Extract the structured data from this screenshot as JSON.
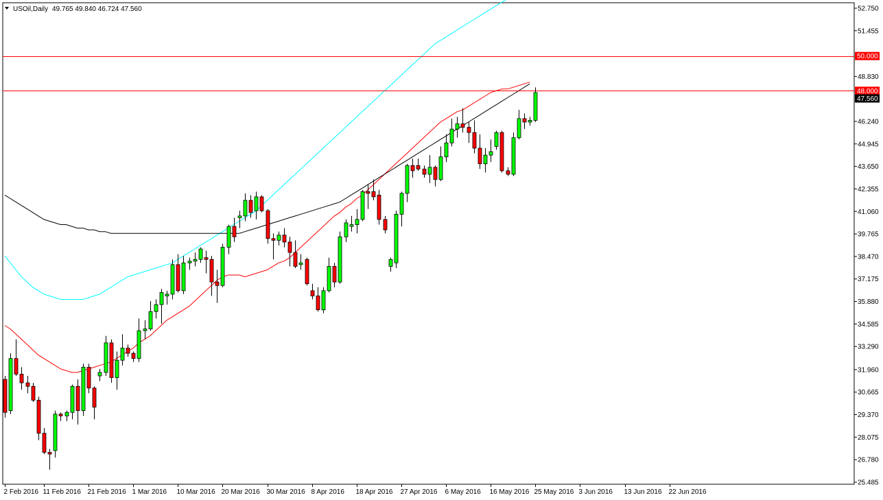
{
  "header": {
    "symbol_label": "USOil,Daily",
    "ohlc_label": "49.765 49.840 46.724 47.560",
    "dropdown_icon": "triangle-down-icon"
  },
  "colors": {
    "bull": "#00ff00",
    "bear": "#ff0000",
    "wick": "#000000",
    "level_line": "#ff0000",
    "ma_fast": "#ff0000",
    "ma_mid": "#00ffff",
    "ma_slow": "#000000",
    "current_price_tag": "#000000",
    "level_tag": "#ff0000",
    "grid": "none"
  },
  "chart_data": {
    "type": "candlestick",
    "title": "USOil,Daily",
    "ylim": [
      25.485,
      52.75
    ],
    "grid": false,
    "y_ticks": [
      "52.750",
      "51.455",
      "50.000",
      "48.830",
      "48.000",
      "47.560",
      "46.240",
      "44.945",
      "43.650",
      "42.355",
      "41.060",
      "39.765",
      "38.470",
      "37.175",
      "35.880",
      "34.585",
      "33.290",
      "31.960",
      "30.665",
      "29.370",
      "28.075",
      "26.780",
      "25.485"
    ],
    "x_ticks": [
      {
        "label": "2 Feb 2016",
        "index": 0
      },
      {
        "label": "11 Feb 2016",
        "index": 7
      },
      {
        "label": "21 Feb 2016",
        "index": 15
      },
      {
        "label": "1 Mar 2016",
        "index": 23
      },
      {
        "label": "10 Mar 2016",
        "index": 31
      },
      {
        "label": "20 Mar 2016",
        "index": 39
      },
      {
        "label": "30 Mar 2016",
        "index": 47
      },
      {
        "label": "8 Apr 2016",
        "index": 55
      },
      {
        "label": "18 Apr 2016",
        "index": 63
      },
      {
        "label": "27 Apr 2016",
        "index": 71
      },
      {
        "label": "6 May 2016",
        "index": 79
      },
      {
        "label": "16 May 2016",
        "index": 87
      },
      {
        "label": "25 May 2016",
        "index": 95
      },
      {
        "label": "3 Jun 2016",
        "index": 103
      },
      {
        "label": "13 Jun 2016",
        "index": 111
      },
      {
        "label": "22 Jun 2016",
        "index": 119
      }
    ],
    "horizontal_levels": [
      {
        "value": 50.0,
        "label": "50.000"
      },
      {
        "value": 48.0,
        "label": "48.000"
      }
    ],
    "current_price": {
      "value": 47.56,
      "label": "47.560"
    },
    "candles": [
      {
        "o": 31.4,
        "h": 31.6,
        "l": 29.2,
        "c": 29.5
      },
      {
        "o": 29.6,
        "h": 32.9,
        "l": 29.4,
        "c": 32.6
      },
      {
        "o": 32.6,
        "h": 33.7,
        "l": 31.6,
        "c": 31.7
      },
      {
        "o": 31.7,
        "h": 32.1,
        "l": 30.8,
        "c": 31.2
      },
      {
        "o": 31.2,
        "h": 31.6,
        "l": 30.6,
        "c": 31.0
      },
      {
        "o": 31.0,
        "h": 31.2,
        "l": 30.1,
        "c": 30.2
      },
      {
        "o": 30.2,
        "h": 30.4,
        "l": 27.9,
        "c": 28.3
      },
      {
        "o": 28.3,
        "h": 28.6,
        "l": 27.1,
        "c": 27.2
      },
      {
        "o": 27.2,
        "h": 27.4,
        "l": 26.2,
        "c": 27.1
      },
      {
        "o": 27.3,
        "h": 29.6,
        "l": 26.9,
        "c": 29.4
      },
      {
        "o": 29.4,
        "h": 29.5,
        "l": 29.0,
        "c": 29.3
      },
      {
        "o": 29.3,
        "h": 29.6,
        "l": 29.0,
        "c": 29.5
      },
      {
        "o": 29.5,
        "h": 31.1,
        "l": 29.1,
        "c": 31.0
      },
      {
        "o": 31.0,
        "h": 31.4,
        "l": 28.8,
        "c": 29.6
      },
      {
        "o": 29.6,
        "h": 32.3,
        "l": 29.3,
        "c": 32.1
      },
      {
        "o": 32.1,
        "h": 32.3,
        "l": 30.6,
        "c": 30.9
      },
      {
        "o": 30.9,
        "h": 31.0,
        "l": 29.1,
        "c": 29.8
      },
      {
        "o": 31.6,
        "h": 32.0,
        "l": 31.3,
        "c": 31.8
      },
      {
        "o": 31.8,
        "h": 33.9,
        "l": 31.6,
        "c": 33.5
      },
      {
        "o": 33.5,
        "h": 33.7,
        "l": 31.2,
        "c": 31.5
      },
      {
        "o": 31.5,
        "h": 33.0,
        "l": 30.8,
        "c": 32.5
      },
      {
        "o": 32.5,
        "h": 34.0,
        "l": 32.2,
        "c": 33.2
      },
      {
        "o": 33.2,
        "h": 33.4,
        "l": 32.7,
        "c": 32.9
      },
      {
        "o": 32.9,
        "h": 33.0,
        "l": 32.4,
        "c": 32.6
      },
      {
        "o": 32.6,
        "h": 34.9,
        "l": 32.4,
        "c": 34.2
      },
      {
        "o": 34.2,
        "h": 34.8,
        "l": 33.7,
        "c": 34.3
      },
      {
        "o": 34.3,
        "h": 35.9,
        "l": 34.2,
        "c": 35.3
      },
      {
        "o": 35.3,
        "h": 36.0,
        "l": 34.9,
        "c": 35.7
      },
      {
        "o": 35.7,
        "h": 36.6,
        "l": 34.6,
        "c": 36.4
      },
      {
        "o": 36.2,
        "h": 36.5,
        "l": 35.7,
        "c": 36.3
      },
      {
        "o": 36.3,
        "h": 38.3,
        "l": 36.0,
        "c": 38.0
      },
      {
        "o": 38.0,
        "h": 38.6,
        "l": 36.4,
        "c": 36.5
      },
      {
        "o": 36.5,
        "h": 38.5,
        "l": 36.3,
        "c": 38.1
      },
      {
        "o": 38.1,
        "h": 38.4,
        "l": 37.7,
        "c": 38.2
      },
      {
        "o": 38.2,
        "h": 38.7,
        "l": 37.9,
        "c": 38.3
      },
      {
        "o": 38.3,
        "h": 39.0,
        "l": 38.1,
        "c": 38.9
      },
      {
        "o": 38.4,
        "h": 38.8,
        "l": 37.5,
        "c": 38.3
      },
      {
        "o": 38.3,
        "h": 38.5,
        "l": 36.2,
        "c": 37.0
      },
      {
        "o": 37.0,
        "h": 37.7,
        "l": 35.8,
        "c": 36.8
      },
      {
        "o": 36.8,
        "h": 39.2,
        "l": 36.7,
        "c": 39.0
      },
      {
        "o": 39.0,
        "h": 40.3,
        "l": 38.6,
        "c": 40.2
      },
      {
        "o": 40.2,
        "h": 40.7,
        "l": 39.3,
        "c": 39.6
      },
      {
        "o": 40.7,
        "h": 41.1,
        "l": 40.1,
        "c": 40.8
      },
      {
        "o": 40.8,
        "h": 42.1,
        "l": 40.5,
        "c": 41.7
      },
      {
        "o": 41.7,
        "h": 42.0,
        "l": 40.7,
        "c": 41.0
      },
      {
        "o": 41.1,
        "h": 42.2,
        "l": 40.6,
        "c": 41.9
      },
      {
        "o": 41.9,
        "h": 42.0,
        "l": 41.0,
        "c": 41.1
      },
      {
        "o": 41.1,
        "h": 41.2,
        "l": 39.2,
        "c": 39.5
      },
      {
        "o": 39.5,
        "h": 39.8,
        "l": 38.3,
        "c": 39.4
      },
      {
        "o": 39.4,
        "h": 39.9,
        "l": 39.1,
        "c": 39.7
      },
      {
        "o": 39.7,
        "h": 40.1,
        "l": 39.0,
        "c": 39.3
      },
      {
        "o": 39.3,
        "h": 39.6,
        "l": 37.9,
        "c": 38.7
      },
      {
        "o": 38.7,
        "h": 39.4,
        "l": 37.8,
        "c": 37.9
      },
      {
        "o": 38.0,
        "h": 38.6,
        "l": 37.7,
        "c": 38.1
      },
      {
        "o": 38.3,
        "h": 38.4,
        "l": 36.8,
        "c": 36.9
      },
      {
        "o": 36.5,
        "h": 36.9,
        "l": 36.0,
        "c": 36.2
      },
      {
        "o": 36.2,
        "h": 36.7,
        "l": 35.3,
        "c": 35.4
      },
      {
        "o": 35.4,
        "h": 36.7,
        "l": 35.2,
        "c": 36.5
      },
      {
        "o": 36.5,
        "h": 38.4,
        "l": 36.4,
        "c": 37.9
      },
      {
        "o": 37.9,
        "h": 38.1,
        "l": 36.7,
        "c": 37.0
      },
      {
        "o": 37.0,
        "h": 39.9,
        "l": 36.9,
        "c": 39.6
      },
      {
        "o": 39.6,
        "h": 40.6,
        "l": 39.3,
        "c": 40.4
      },
      {
        "o": 40.2,
        "h": 40.8,
        "l": 39.9,
        "c": 40.3
      },
      {
        "o": 40.3,
        "h": 41.2,
        "l": 39.8,
        "c": 40.6
      },
      {
        "o": 40.6,
        "h": 42.3,
        "l": 40.5,
        "c": 42.2
      },
      {
        "o": 42.2,
        "h": 42.6,
        "l": 41.2,
        "c": 42.1
      },
      {
        "o": 42.2,
        "h": 42.9,
        "l": 41.7,
        "c": 41.9
      },
      {
        "o": 42.0,
        "h": 42.3,
        "l": 40.3,
        "c": 40.6
      },
      {
        "o": 40.6,
        "h": 40.8,
        "l": 39.8,
        "c": 40.0
      },
      {
        "o": 37.9,
        "h": 38.4,
        "l": 37.6,
        "c": 38.3
      },
      {
        "o": 38.1,
        "h": 41.1,
        "l": 37.8,
        "c": 40.9
      },
      {
        "o": 40.9,
        "h": 42.2,
        "l": 40.2,
        "c": 42.1
      },
      {
        "o": 42.1,
        "h": 43.8,
        "l": 41.6,
        "c": 43.7
      },
      {
        "o": 43.7,
        "h": 44.1,
        "l": 43.0,
        "c": 43.4
      },
      {
        "o": 43.7,
        "h": 44.1,
        "l": 43.4,
        "c": 43.5
      },
      {
        "o": 43.5,
        "h": 43.7,
        "l": 43.0,
        "c": 43.2
      },
      {
        "o": 43.2,
        "h": 44.3,
        "l": 42.7,
        "c": 43.6
      },
      {
        "o": 43.6,
        "h": 43.7,
        "l": 42.5,
        "c": 42.9
      },
      {
        "o": 42.9,
        "h": 44.8,
        "l": 42.8,
        "c": 44.2
      },
      {
        "o": 44.2,
        "h": 45.5,
        "l": 43.9,
        "c": 45.0
      },
      {
        "o": 45.0,
        "h": 46.4,
        "l": 44.8,
        "c": 45.8
      },
      {
        "o": 45.8,
        "h": 46.5,
        "l": 45.3,
        "c": 46.1
      },
      {
        "o": 46.1,
        "h": 47.0,
        "l": 45.6,
        "c": 45.9
      },
      {
        "o": 45.9,
        "h": 46.2,
        "l": 45.0,
        "c": 45.6
      },
      {
        "o": 45.6,
        "h": 46.3,
        "l": 44.4,
        "c": 44.7
      },
      {
        "o": 44.7,
        "h": 45.5,
        "l": 43.5,
        "c": 43.8
      },
      {
        "o": 43.8,
        "h": 44.7,
        "l": 43.3,
        "c": 44.3
      },
      {
        "o": 44.3,
        "h": 45.2,
        "l": 43.9,
        "c": 44.5
      },
      {
        "o": 44.8,
        "h": 45.7,
        "l": 44.6,
        "c": 45.6
      },
      {
        "o": 45.6,
        "h": 45.7,
        "l": 43.3,
        "c": 43.4
      },
      {
        "o": 43.4,
        "h": 43.6,
        "l": 43.1,
        "c": 43.2
      },
      {
        "o": 43.2,
        "h": 45.6,
        "l": 43.1,
        "c": 45.3
      },
      {
        "o": 45.3,
        "h": 46.9,
        "l": 45.2,
        "c": 46.4
      },
      {
        "o": 46.4,
        "h": 46.7,
        "l": 45.8,
        "c": 46.2
      },
      {
        "o": 46.2,
        "h": 46.5,
        "l": 46.0,
        "c": 46.3
      },
      {
        "o": 46.3,
        "h": 48.2,
        "l": 46.2,
        "c": 47.9
      }
    ],
    "series": [
      {
        "kind": "moving-average",
        "color": "#ff0000",
        "values": [
          34.5,
          34.3,
          34.0,
          33.7,
          33.4,
          33.1,
          32.8,
          32.6,
          32.4,
          32.2,
          32.0,
          31.9,
          31.8,
          31.8,
          31.9,
          32.0,
          32.1,
          32.2,
          32.3,
          32.4,
          32.6,
          32.8,
          33.0,
          33.2,
          33.5,
          33.7,
          33.9,
          34.2,
          34.5,
          34.8,
          35.0,
          35.2,
          35.4,
          35.6,
          35.9,
          36.2,
          36.5,
          36.8,
          37.1,
          37.3,
          37.4,
          37.4,
          37.4,
          37.3,
          37.4,
          37.5,
          37.6,
          37.7,
          37.9,
          38.1,
          38.2,
          38.4,
          38.7,
          39.0,
          39.3,
          39.6,
          39.9,
          40.2,
          40.5,
          40.8,
          41.0,
          41.3,
          41.5,
          41.8,
          42.0,
          42.3,
          42.6,
          42.9,
          43.2,
          43.5,
          43.8,
          44.1,
          44.4,
          44.7,
          45.0,
          45.3,
          45.6,
          45.9,
          46.2,
          46.4,
          46.6,
          46.8,
          46.9,
          47.1,
          47.3,
          47.5,
          47.7,
          47.9,
          48.0,
          48.1,
          48.1,
          48.2,
          48.3,
          48.4,
          48.5
        ]
      },
      {
        "kind": "moving-average",
        "color": "#00ffff",
        "values": [
          38.5,
          38.1,
          37.7,
          37.3,
          37.0,
          36.7,
          36.5,
          36.3,
          36.2,
          36.1,
          36.0,
          36.0,
          36.0,
          36.0,
          36.0,
          36.1,
          36.2,
          36.3,
          36.5,
          36.7,
          36.9,
          37.1,
          37.3,
          37.4,
          37.5,
          37.6,
          37.7,
          37.8,
          37.9,
          38.0,
          38.1,
          38.3,
          38.5,
          38.7,
          38.9,
          39.1,
          39.3,
          39.5,
          39.7,
          39.9,
          40.1,
          40.3,
          40.5,
          40.7,
          40.9,
          41.1,
          41.4,
          41.7,
          42.0,
          42.3,
          42.6,
          42.9,
          43.2,
          43.5,
          43.8,
          44.1,
          44.4,
          44.7,
          45.0,
          45.3,
          45.6,
          45.9,
          46.2,
          46.5,
          46.8,
          47.1,
          47.4,
          47.7,
          48.0,
          48.3,
          48.6,
          48.9,
          49.2,
          49.5,
          49.8,
          50.1,
          50.4,
          50.7,
          50.9,
          51.1,
          51.3,
          51.5,
          51.7,
          51.9,
          52.1,
          52.3,
          52.5,
          52.7,
          52.9,
          53.1,
          53.3,
          53.5,
          53.7,
          53.9,
          54.1
        ]
      },
      {
        "kind": "moving-average",
        "color": "#000000",
        "values": [
          42.0,
          41.8,
          41.6,
          41.4,
          41.2,
          41.0,
          40.8,
          40.6,
          40.5,
          40.4,
          40.3,
          40.3,
          40.2,
          40.1,
          40.1,
          40.0,
          40.0,
          39.9,
          39.9,
          39.8,
          39.8,
          39.8,
          39.8,
          39.8,
          39.8,
          39.8,
          39.8,
          39.8,
          39.8,
          39.8,
          39.8,
          39.8,
          39.8,
          39.8,
          39.8,
          39.8,
          39.8,
          39.8,
          39.8,
          39.8,
          39.8,
          39.8,
          39.8,
          39.9,
          40.0,
          40.1,
          40.2,
          40.3,
          40.4,
          40.5,
          40.6,
          40.7,
          40.8,
          40.9,
          41.0,
          41.1,
          41.2,
          41.3,
          41.4,
          41.5,
          41.6,
          41.8,
          42.0,
          42.2,
          42.4,
          42.6,
          42.8,
          43.0,
          43.2,
          43.4,
          43.6,
          43.8,
          44.0,
          44.2,
          44.4,
          44.6,
          44.8,
          45.0,
          45.2,
          45.4,
          45.6,
          45.8,
          46.0,
          46.2,
          46.4,
          46.6,
          46.8,
          47.0,
          47.2,
          47.4,
          47.6,
          47.8,
          48.0,
          48.2,
          48.4
        ]
      }
    ],
    "extra_candles_note": ""
  }
}
